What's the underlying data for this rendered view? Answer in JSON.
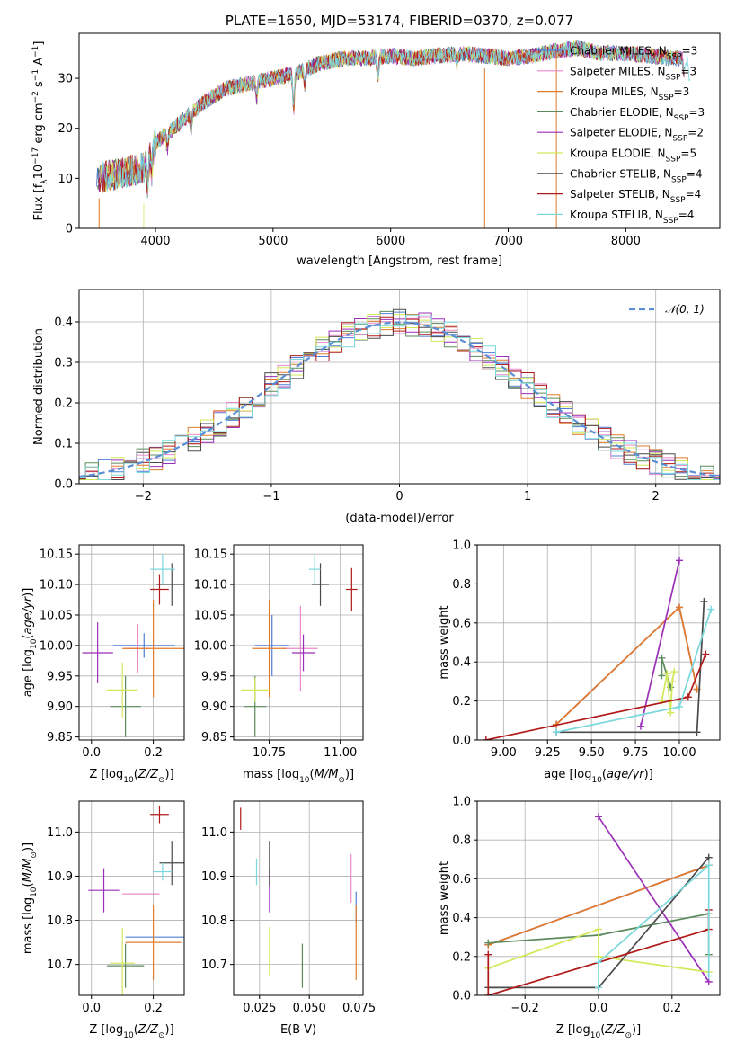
{
  "colors": {
    "Chabrier MILES": "#4f7fd6",
    "Salpeter MILES": "#e88aca",
    "Kroupa MILES": "#e07b2a",
    "Chabrier ELODIE": "#5c8a5c",
    "Salpeter ELODIE": "#9b2fb8",
    "Kroupa ELODIE": "#d2e858",
    "Chabrier STELIB": "#4a4a4a",
    "Salpeter STELIB": "#b01a1a",
    "Kroupa STELIB": "#7ad8dc",
    "normal_curve": "#5a8fd6",
    "grid": "#b0b0b0"
  },
  "chart_data": [
    {
      "id": "spectrum",
      "type": "line",
      "title": "PLATE=1650, MJD=53174, FIBERID=0370, z=0.077",
      "xlabel": "wavelength [Angstrom, rest frame]",
      "ylabel": "Flux [fλ10⁻¹⁷ erg cm⁻² s⁻¹ A⁻¹]",
      "xlim": [
        3350,
        8800
      ],
      "ylim": [
        0,
        39
      ],
      "xticks": [
        4000,
        5000,
        6000,
        7000,
        8000
      ],
      "yticks": [
        0,
        10,
        20,
        30
      ],
      "grid": false,
      "legend_position": "right",
      "series": [
        {
          "name": "Chabrier MILES, N_SSP=3",
          "legend": [
            "Chabrier MILES, N",
            "SSP",
            "=3"
          ]
        },
        {
          "name": "Salpeter MILES, N_SSP=3",
          "legend": [
            "Salpeter MILES, N",
            "SSP",
            "=3"
          ]
        },
        {
          "name": "Kroupa MILES, N_SSP=3",
          "legend": [
            "Kroupa MILES, N",
            "SSP",
            "=3"
          ]
        },
        {
          "name": "Chabrier ELODIE, N_SSP=3",
          "legend": [
            "Chabrier ELODIE, N",
            "SSP",
            "=3"
          ]
        },
        {
          "name": "Salpeter ELODIE, N_SSP=2",
          "legend": [
            "Salpeter ELODIE, N",
            "SSP",
            "=2"
          ]
        },
        {
          "name": "Kroupa ELODIE, N_SSP=5",
          "legend": [
            "Kroupa ELODIE, N",
            "SSP",
            "=5"
          ]
        },
        {
          "name": "Chabrier STELIB, N_SSP=4",
          "legend": [
            "Chabrier STELIB, N",
            "SSP",
            "=4"
          ]
        },
        {
          "name": "Salpeter STELIB, N_SSP=4",
          "legend": [
            "Salpeter STELIB, N",
            "SSP",
            "=4"
          ]
        },
        {
          "name": "Kroupa STELIB, N_SSP=4",
          "legend": [
            "Kroupa STELIB, N",
            "SSP",
            "=4"
          ]
        }
      ],
      "continuum": [
        [
          3500,
          10
        ],
        [
          3700,
          11
        ],
        [
          3900,
          12
        ],
        [
          4000,
          17
        ],
        [
          4200,
          21
        ],
        [
          4400,
          25
        ],
        [
          4600,
          28
        ],
        [
          4800,
          29
        ],
        [
          5000,
          30
        ],
        [
          5200,
          31
        ],
        [
          5400,
          33
        ],
        [
          5600,
          34
        ],
        [
          5800,
          34
        ],
        [
          6000,
          34.5
        ],
        [
          6200,
          34
        ],
        [
          6400,
          34.5
        ],
        [
          6600,
          35
        ],
        [
          6800,
          34.5
        ],
        [
          7000,
          34
        ],
        [
          7200,
          34.5
        ],
        [
          7400,
          35.5
        ],
        [
          7600,
          36
        ],
        [
          7800,
          35
        ],
        [
          8000,
          35
        ],
        [
          8200,
          34.5
        ],
        [
          8400,
          34
        ]
      ],
      "features": [
        [
          3934,
          -5
        ],
        [
          3968,
          -4
        ],
        [
          4101,
          -3
        ],
        [
          4304,
          -3
        ],
        [
          4861,
          -3
        ],
        [
          5175,
          -7
        ],
        [
          5270,
          -3
        ],
        [
          5892,
          -4
        ],
        [
          6563,
          -2
        ],
        [
          8498,
          -3
        ],
        [
          8542,
          -4
        ],
        [
          8662,
          -4
        ]
      ]
    },
    {
      "id": "residuals",
      "type": "histogram",
      "xlabel": "(data-model)/error",
      "ylabel": "Normed distribution",
      "xlim": [
        -2.5,
        2.5
      ],
      "ylim": [
        0,
        0.48
      ],
      "xticks": [
        -2,
        -1,
        0,
        1,
        2
      ],
      "yticks": [
        0.0,
        0.1,
        0.2,
        0.3,
        0.4
      ],
      "grid": true,
      "bin_width": 0.1,
      "legend_position": "upper right",
      "reference": {
        "name": "𝒩(0, 1)",
        "mean": 0,
        "sigma": 1
      }
    },
    {
      "id": "age_vs_Z",
      "type": "errorbar",
      "xlabel": "Z [log10(Z/Z⊙)]",
      "ylabel": "age  [log10(age/yr)]",
      "xlim": [
        -0.04,
        0.3
      ],
      "ylim": [
        9.845,
        10.165
      ],
      "xticks": [
        0.0,
        0.2
      ],
      "yticks": [
        9.85,
        9.9,
        9.95,
        10.0,
        10.05,
        10.1,
        10.15
      ],
      "grid": true,
      "points": [
        {
          "model": "Chabrier MILES",
          "x": 0.17,
          "xerr": 0.1,
          "y": 10.0,
          "yerr": 0.02
        },
        {
          "model": "Salpeter MILES",
          "x": 0.15,
          "xerr": 0.04,
          "y": 9.995,
          "yerr": 0.04
        },
        {
          "model": "Kroupa MILES",
          "x": 0.2,
          "xerr": 0.1,
          "y": 9.995,
          "yerr": 0.08
        },
        {
          "model": "Chabrier ELODIE",
          "x": 0.11,
          "xerr": 0.05,
          "y": 9.9,
          "yerr": 0.05
        },
        {
          "model": "Salpeter ELODIE",
          "x": 0.02,
          "xerr": 0.05,
          "y": 9.988,
          "yerr": 0.05
        },
        {
          "model": "Kroupa ELODIE",
          "x": 0.1,
          "xerr": 0.05,
          "y": 9.927,
          "yerr": 0.045
        },
        {
          "model": "Chabrier STELIB",
          "x": 0.26,
          "xerr": 0.05,
          "y": 10.1,
          "yerr": 0.035
        },
        {
          "model": "Salpeter STELIB",
          "x": 0.22,
          "xerr": 0.03,
          "y": 10.092,
          "yerr": 0.025
        },
        {
          "model": "Kroupa STELIB",
          "x": 0.23,
          "xerr": 0.04,
          "y": 10.125,
          "yerr": 0.025
        }
      ]
    },
    {
      "id": "age_vs_mass",
      "type": "errorbar",
      "xlabel": "mass [log10(M/M⊙)]",
      "xlim": [
        10.625,
        11.08
      ],
      "ylim": [
        9.845,
        10.165
      ],
      "xticks": [
        10.75,
        11.0
      ],
      "yticks": [
        9.85,
        9.9,
        9.95,
        10.0,
        10.05,
        10.1,
        10.15
      ],
      "grid": true,
      "points": [
        {
          "model": "Chabrier MILES",
          "x": 10.76,
          "xerr": 0.06,
          "y": 10.0,
          "yerr": 0.05
        },
        {
          "model": "Salpeter MILES",
          "x": 10.86,
          "xerr": 0.06,
          "y": 9.995,
          "yerr": 0.07
        },
        {
          "model": "Kroupa MILES",
          "x": 10.75,
          "xerr": 0.06,
          "y": 9.995,
          "yerr": 0.08
        },
        {
          "model": "Chabrier ELODIE",
          "x": 10.7,
          "xerr": 0.04,
          "y": 9.9,
          "yerr": 0.05
        },
        {
          "model": "Salpeter ELODIE",
          "x": 10.87,
          "xerr": 0.04,
          "y": 9.988,
          "yerr": 0.03
        },
        {
          "model": "Kroupa ELODIE",
          "x": 10.7,
          "xerr": 0.05,
          "y": 9.927,
          "yerr": 0.02
        },
        {
          "model": "Chabrier STELIB",
          "x": 10.93,
          "xerr": 0.03,
          "y": 10.1,
          "yerr": 0.035
        },
        {
          "model": "Salpeter STELIB",
          "x": 11.04,
          "xerr": 0.02,
          "y": 10.092,
          "yerr": 0.035
        },
        {
          "model": "Kroupa STELIB",
          "x": 10.91,
          "xerr": 0.02,
          "y": 10.125,
          "yerr": 0.025
        }
      ]
    },
    {
      "id": "weight_vs_age",
      "type": "line",
      "xlabel": "age  [log10(age/yr)]",
      "ylabel": "mass weight",
      "xlim": [
        8.85,
        10.23
      ],
      "ylim": [
        0,
        1
      ],
      "xticks": [
        9.0,
        9.25,
        9.5,
        9.75,
        10.0
      ],
      "yticks": [
        0.0,
        0.2,
        0.4,
        0.6,
        0.8,
        1.0
      ],
      "grid": true,
      "series": [
        {
          "model": "Chabrier MILES",
          "x": [
            9.3,
            10.0,
            10.1
          ],
          "y": [
            0.08,
            0.68,
            0.26
          ]
        },
        {
          "model": "Salpeter MILES",
          "x": [
            9.3,
            10.0,
            10.1
          ],
          "y": [
            0.08,
            0.68,
            0.26
          ]
        },
        {
          "model": "Kroupa MILES",
          "x": [
            9.3,
            10.0,
            10.1
          ],
          "y": [
            0.08,
            0.68,
            0.26
          ]
        },
        {
          "model": "Chabrier ELODIE",
          "x": [
            9.9,
            9.9,
            9.95
          ],
          "y": [
            0.33,
            0.42,
            0.27
          ]
        },
        {
          "model": "Salpeter ELODIE",
          "x": [
            9.78,
            10.0
          ],
          "y": [
            0.07,
            0.92
          ]
        },
        {
          "model": "Kroupa ELODIE",
          "x": [
            9.9,
            9.93,
            9.95,
            9.96,
            9.97
          ],
          "y": [
            0.2,
            0.34,
            0.14,
            0.3,
            0.35
          ]
        },
        {
          "model": "Chabrier STELIB",
          "x": [
            9.3,
            10.1,
            10.14
          ],
          "y": [
            0.04,
            0.04,
            0.71
          ]
        },
        {
          "model": "Salpeter STELIB",
          "x": [
            8.9,
            10.05,
            10.15
          ],
          "y": [
            0.0,
            0.22,
            0.44
          ]
        },
        {
          "model": "Kroupa STELIB",
          "x": [
            9.3,
            10.0,
            10.18
          ],
          "y": [
            0.04,
            0.17,
            0.67
          ]
        }
      ]
    },
    {
      "id": "mass_vs_Z",
      "type": "errorbar",
      "xlabel": "Z [log10(Z/Z⊙)]",
      "ylabel": "mass [log10(M/M⊙)]",
      "xlim": [
        -0.04,
        0.3
      ],
      "ylim": [
        10.63,
        11.07
      ],
      "xticks": [
        0.0,
        0.2
      ],
      "yticks": [
        10.7,
        10.8,
        10.9,
        11.0
      ],
      "grid": true,
      "points": [
        {
          "model": "Chabrier MILES",
          "x": 0.21,
          "xerr": 0.1,
          "y": 10.762,
          "yerr": 0.0
        },
        {
          "model": "Salpeter MILES",
          "x": 0.16,
          "xerr": 0.06,
          "y": 10.86,
          "yerr": 0.0
        },
        {
          "model": "Kroupa MILES",
          "x": 0.2,
          "xerr": 0.09,
          "y": 10.75,
          "yerr": 0.085
        },
        {
          "model": "Chabrier ELODIE",
          "x": 0.11,
          "xerr": 0.06,
          "y": 10.697,
          "yerr": 0.05
        },
        {
          "model": "Salpeter ELODIE",
          "x": 0.04,
          "xerr": 0.05,
          "y": 10.868,
          "yerr": 0.05
        },
        {
          "model": "Kroupa ELODIE",
          "x": 0.1,
          "xerr": 0.04,
          "y": 10.703,
          "yerr": 0.08
        },
        {
          "model": "Chabrier STELIB",
          "x": 0.26,
          "xerr": 0.04,
          "y": 10.93,
          "yerr": 0.05
        },
        {
          "model": "Salpeter STELIB",
          "x": 0.22,
          "xerr": 0.03,
          "y": 11.04,
          "yerr": 0.02
        },
        {
          "model": "Kroupa STELIB",
          "x": 0.23,
          "xerr": 0.03,
          "y": 10.91,
          "yerr": 0.02
        }
      ]
    },
    {
      "id": "mass_vs_ebv",
      "type": "errorbar",
      "xlabel": "E(B-V)",
      "xlim": [
        0.012,
        0.077
      ],
      "ylim": [
        10.63,
        11.07
      ],
      "xticks": [
        0.025,
        0.05,
        0.075
      ],
      "yticks": [
        10.7,
        10.8,
        10.9,
        11.0
      ],
      "grid": true,
      "points": [
        {
          "model": "Chabrier MILES",
          "x": 0.0735,
          "xerr": 0.0,
          "y": 10.83,
          "yerr": 0.035
        },
        {
          "model": "Salpeter MILES",
          "x": 0.071,
          "xerr": 0.0,
          "y": 10.895,
          "yerr": 0.055
        },
        {
          "model": "Kroupa MILES",
          "x": 0.0735,
          "xerr": 0.0,
          "y": 10.75,
          "yerr": 0.085
        },
        {
          "model": "Chabrier ELODIE",
          "x": 0.0465,
          "xerr": 0.0,
          "y": 10.697,
          "yerr": 0.05
        },
        {
          "model": "Salpeter ELODIE",
          "x": 0.03,
          "xerr": 0.0,
          "y": 10.868,
          "yerr": 0.05
        },
        {
          "model": "Kroupa ELODIE",
          "x": 0.03,
          "xerr": 0.0,
          "y": 10.73,
          "yerr": 0.055
        },
        {
          "model": "Chabrier STELIB",
          "x": 0.03,
          "xerr": 0.0,
          "y": 10.93,
          "yerr": 0.05
        },
        {
          "model": "Salpeter STELIB",
          "x": 0.0155,
          "xerr": 0.0,
          "y": 11.03,
          "yerr": 0.025
        },
        {
          "model": "Kroupa STELIB",
          "x": 0.0235,
          "xerr": 0.0,
          "y": 10.91,
          "yerr": 0.03
        }
      ]
    },
    {
      "id": "weight_vs_Z",
      "type": "line",
      "xlabel": "Z [log10(Z/Z⊙)]",
      "ylabel": "mass weight",
      "xlim": [
        -0.33,
        0.33
      ],
      "ylim": [
        0,
        1
      ],
      "xticks": [
        -0.2,
        0.0,
        0.2
      ],
      "yticks": [
        0.0,
        0.2,
        0.4,
        0.6,
        0.8,
        1.0
      ],
      "grid": true,
      "series": [
        {
          "model": "Chabrier MILES",
          "x": [
            -0.3,
            0.3
          ],
          "y": [
            0.26,
            0.67
          ]
        },
        {
          "model": "Salpeter MILES",
          "x": [
            -0.3,
            0.3
          ],
          "y": [
            0.26,
            0.67
          ]
        },
        {
          "model": "Kroupa MILES",
          "x": [
            -0.3,
            0.3
          ],
          "y": [
            0.26,
            0.67
          ]
        },
        {
          "model": "Chabrier ELODIE",
          "x": [
            -0.3,
            0.0,
            0.3,
            0.3
          ],
          "y": [
            0.27,
            0.31,
            0.42,
            0.21
          ]
        },
        {
          "model": "Salpeter ELODIE",
          "x": [
            0.0,
            0.3
          ],
          "y": [
            0.92,
            0.07
          ]
        },
        {
          "model": "Kroupa ELODIE",
          "x": [
            -0.3,
            0.0,
            0.0,
            0.3
          ],
          "y": [
            0.14,
            0.34,
            0.2,
            0.12
          ]
        },
        {
          "model": "Chabrier STELIB",
          "x": [
            -0.3,
            0.0,
            0.3
          ],
          "y": [
            0.04,
            0.04,
            0.71
          ]
        },
        {
          "model": "Salpeter STELIB",
          "x": [
            -0.3,
            -0.3,
            0.3,
            0.3
          ],
          "y": [
            0.21,
            0.0,
            0.34,
            0.44
          ]
        },
        {
          "model": "Kroupa STELIB",
          "x": [
            0.0,
            0.0,
            0.3,
            0.3
          ],
          "y": [
            0.04,
            0.17,
            0.67,
            0.1
          ]
        }
      ]
    }
  ]
}
